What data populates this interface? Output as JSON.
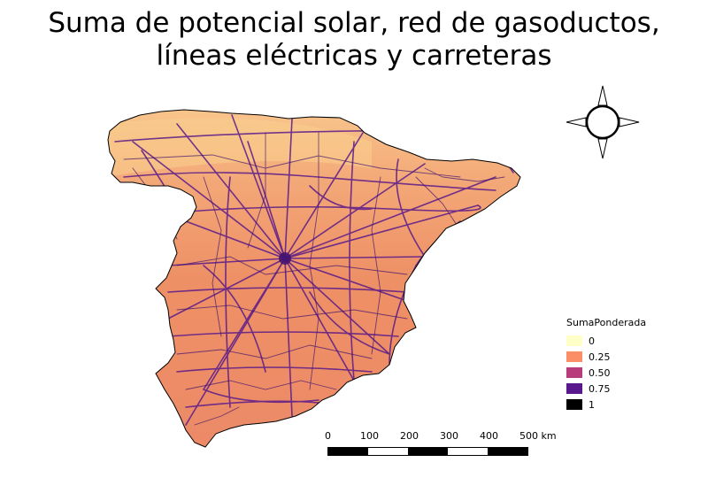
{
  "title_line1": "Suma de potencial solar, red de gasoductos,",
  "title_line2": "líneas eléctricas y carreteras",
  "legend": {
    "title": "SumaPonderada",
    "items": [
      {
        "label": "0",
        "color": "#ffffc8"
      },
      {
        "label": "0.25",
        "color": "#fb8d67"
      },
      {
        "label": "0.50",
        "color": "#b83b7b"
      },
      {
        "label": "0.75",
        "color": "#5a188f"
      },
      {
        "label": "1",
        "color": "#000000"
      }
    ]
  },
  "scalebar": {
    "labels": [
      "0",
      "100",
      "200",
      "300",
      "400",
      "500 km"
    ]
  },
  "colors": {
    "land_fill": "#ef9a6c",
    "north_coast": "#f9cf8e",
    "road_network": "#571a80",
    "border": "#000000"
  },
  "icons": {
    "north_arrow": "compass-rose-icon"
  }
}
